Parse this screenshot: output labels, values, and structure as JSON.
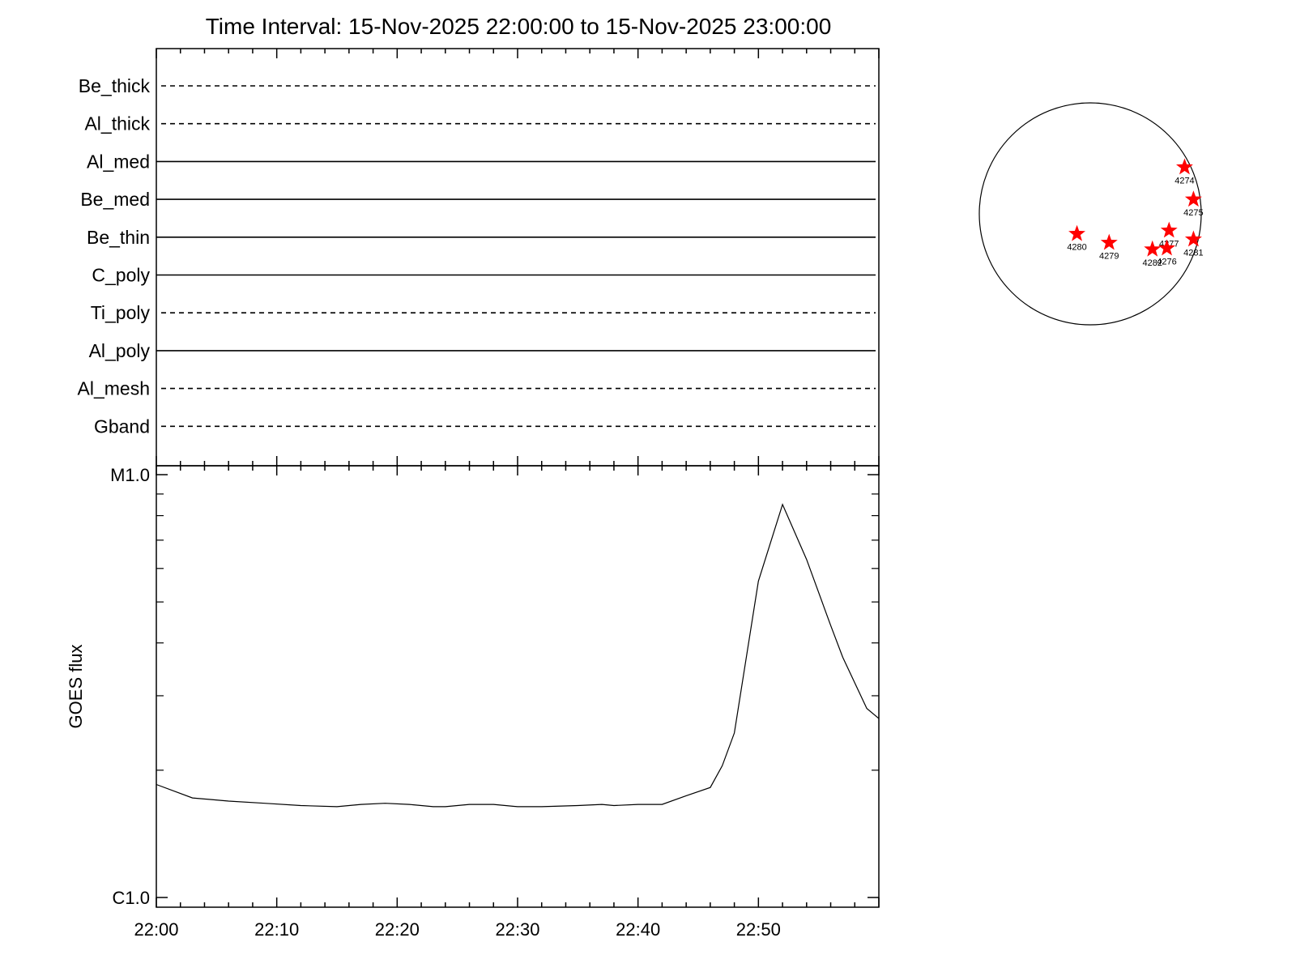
{
  "title": "Time Interval: 15-Nov-2025 22:00:00 to 15-Nov-2025 23:00:00",
  "chart_data": [
    {
      "type": "line",
      "panel": "filter-timeline",
      "series": [
        {
          "name": "Be_thick",
          "style": "dashed"
        },
        {
          "name": "Al_thick",
          "style": "dashed"
        },
        {
          "name": "Al_med",
          "style": "solid"
        },
        {
          "name": "Be_med",
          "style": "solid"
        },
        {
          "name": "Be_thin",
          "style": "solid"
        },
        {
          "name": "C_poly",
          "style": "solid"
        },
        {
          "name": "Ti_poly",
          "style": "dashed"
        },
        {
          "name": "Al_poly",
          "style": "solid"
        },
        {
          "name": "Al_mesh",
          "style": "dashed"
        },
        {
          "name": "Gband",
          "style": "dashed"
        }
      ]
    },
    {
      "type": "line",
      "panel": "goes-flux",
      "ylabel": "GOES flux",
      "yscale": "log",
      "y_ticks": [
        "M1.0",
        "C1.0"
      ],
      "ylim": [
        1e-06,
        1e-05
      ],
      "xlim_minutes": [
        0,
        60
      ],
      "x_ticks": [
        "22:00",
        "22:10",
        "22:20",
        "22:30",
        "22:40",
        "22:50"
      ],
      "x": [
        "22:00",
        "22:03",
        "22:06",
        "22:09",
        "22:12",
        "22:15",
        "22:17",
        "22:19",
        "22:21",
        "22:23",
        "22:24",
        "22:26",
        "22:28",
        "22:30",
        "22:32",
        "22:35",
        "22:37",
        "22:38",
        "22:40",
        "22:42",
        "22:44",
        "22:46",
        "22:47",
        "22:48",
        "22:50",
        "22:52",
        "22:54",
        "22:56",
        "22:57",
        "22:59",
        "23:00"
      ],
      "values": [
        1.85e-06,
        1.72e-06,
        1.69e-06,
        1.67e-06,
        1.65e-06,
        1.64e-06,
        1.66e-06,
        1.67e-06,
        1.66e-06,
        1.64e-06,
        1.64e-06,
        1.66e-06,
        1.66e-06,
        1.64e-06,
        1.64e-06,
        1.65e-06,
        1.66e-06,
        1.65e-06,
        1.66e-06,
        1.66e-06,
        1.74e-06,
        1.82e-06,
        2.05e-06,
        2.45e-06,
        5.6e-06,
        8.5e-06,
        6.3e-06,
        4.4e-06,
        3.7e-06,
        2.8e-06,
        2.65e-06
      ]
    },
    {
      "type": "scatter",
      "panel": "solar-disk",
      "title": "",
      "marker": "star",
      "marker_color": "#ff0000",
      "points": [
        {
          "label": "4274",
          "x": 0.85,
          "y": 0.42
        },
        {
          "label": "4275",
          "x": 0.93,
          "y": 0.13
        },
        {
          "label": "4277",
          "x": 0.71,
          "y": -0.15
        },
        {
          "label": "4281",
          "x": 0.93,
          "y": -0.23
        },
        {
          "label": "4280",
          "x": -0.12,
          "y": -0.18
        },
        {
          "label": "4279",
          "x": 0.17,
          "y": -0.26
        },
        {
          "label": "4282",
          "x": 0.56,
          "y": -0.32
        },
        {
          "label": "4276",
          "x": 0.69,
          "y": -0.31
        }
      ]
    }
  ]
}
